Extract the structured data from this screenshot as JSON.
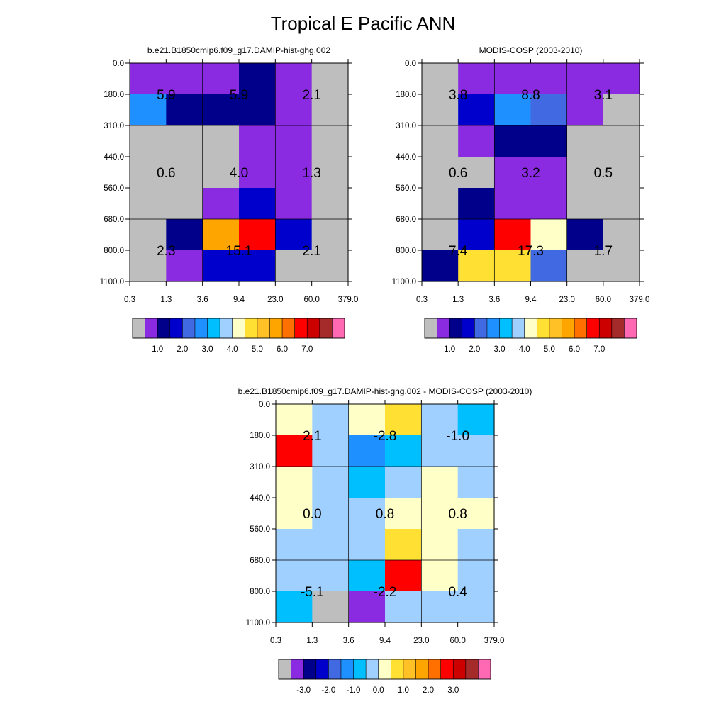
{
  "figure": {
    "title": "Tropical E Pacific ANN"
  },
  "chart_data": [
    {
      "type": "heatmap",
      "title": "b.e21.B1850cmip6.f09_g17.DAMIP-hist-ghg.002",
      "x_tick_labels": [
        "0.3",
        "1.3",
        "3.6",
        "9.4",
        "23.0",
        "60.0",
        "379.0"
      ],
      "y_tick_labels": [
        "0.0",
        "180.0",
        "310.0",
        "440.0",
        "560.0",
        "680.0",
        "800.0",
        "1100.0"
      ],
      "cell_colors": [
        [
          "#8a2be2",
          "#8a2be2",
          "#8a2be2",
          "#00008b",
          "#8a2be2",
          "#bebebe"
        ],
        [
          "#1e90ff",
          "#00008b",
          "#00008b",
          "#00008b",
          "#8a2be2",
          "#bebebe"
        ],
        [
          "#bebebe",
          "#bebebe",
          "#bebebe",
          "#8a2be2",
          "#8a2be2",
          "#bebebe"
        ],
        [
          "#bebebe",
          "#bebebe",
          "#bebebe",
          "#8a2be2",
          "#8a2be2",
          "#bebebe"
        ],
        [
          "#bebebe",
          "#bebebe",
          "#8a2be2",
          "#0000cd",
          "#8a2be2",
          "#bebebe"
        ],
        [
          "#bebebe",
          "#00008b",
          "#ffa500",
          "#ff0000",
          "#0000cd",
          "#bebebe"
        ],
        [
          "#bebebe",
          "#8a2be2",
          "#0000cd",
          "#0000cd",
          "#bebebe",
          "#bebebe"
        ]
      ],
      "box_labels": [
        {
          "row": 0,
          "col": 0,
          "text": "5.9"
        },
        {
          "row": 0,
          "col": 1,
          "text": "5.9"
        },
        {
          "row": 0,
          "col": 2,
          "text": "2.1"
        },
        {
          "row": 1,
          "col": 0,
          "text": "0.6"
        },
        {
          "row": 1,
          "col": 1,
          "text": "4.0"
        },
        {
          "row": 1,
          "col": 2,
          "text": "1.3"
        },
        {
          "row": 2,
          "col": 0,
          "text": "2.3"
        },
        {
          "row": 2,
          "col": 1,
          "text": "15.1"
        },
        {
          "row": 2,
          "col": 2,
          "text": "2.1"
        }
      ],
      "colorbar": {
        "colors": [
          "#bebebe",
          "#8a2be2",
          "#00008b",
          "#0000cd",
          "#4169e1",
          "#1e90ff",
          "#00bfff",
          "#a0d0ff",
          "#ffffc8",
          "#ffe033",
          "#ffc125",
          "#ffa500",
          "#ff7000",
          "#ff0000",
          "#cd0000",
          "#a52a2a",
          "#ff69b4"
        ],
        "labels": [
          "1.0",
          "2.0",
          "3.0",
          "4.0",
          "5.0",
          "6.0",
          "7.0"
        ]
      }
    },
    {
      "type": "heatmap",
      "title": "MODIS-COSP (2003-2010)",
      "x_tick_labels": [
        "0.3",
        "1.3",
        "3.6",
        "9.4",
        "23.0",
        "60.0",
        "379.0"
      ],
      "y_tick_labels": [
        "0.0",
        "180.0",
        "310.0",
        "440.0",
        "560.0",
        "680.0",
        "800.0",
        "1100.0"
      ],
      "cell_colors": [
        [
          "#bebebe",
          "#8a2be2",
          "#8a2be2",
          "#8a2be2",
          "#8a2be2",
          "#8a2be2"
        ],
        [
          "#bebebe",
          "#0000cd",
          "#1e90ff",
          "#4169e1",
          "#8a2be2",
          "#bebebe"
        ],
        [
          "#bebebe",
          "#8a2be2",
          "#00008b",
          "#00008b",
          "#bebebe",
          "#bebebe"
        ],
        [
          "#bebebe",
          "#bebebe",
          "#8a2be2",
          "#8a2be2",
          "#bebebe",
          "#bebebe"
        ],
        [
          "#bebebe",
          "#00008b",
          "#8a2be2",
          "#8a2be2",
          "#bebebe",
          "#bebebe"
        ],
        [
          "#bebebe",
          "#0000cd",
          "#ff0000",
          "#ffffc8",
          "#00008b",
          "#bebebe"
        ],
        [
          "#00008b",
          "#ffe033",
          "#ffe033",
          "#4169e1",
          "#bebebe",
          "#bebebe"
        ]
      ],
      "box_labels": [
        {
          "row": 0,
          "col": 0,
          "text": "3.8"
        },
        {
          "row": 0,
          "col": 1,
          "text": "8.8"
        },
        {
          "row": 0,
          "col": 2,
          "text": "3.1"
        },
        {
          "row": 1,
          "col": 0,
          "text": "0.6"
        },
        {
          "row": 1,
          "col": 1,
          "text": "3.2"
        },
        {
          "row": 1,
          "col": 2,
          "text": "0.5"
        },
        {
          "row": 2,
          "col": 0,
          "text": "7.4"
        },
        {
          "row": 2,
          "col": 1,
          "text": "17.3"
        },
        {
          "row": 2,
          "col": 2,
          "text": "1.7"
        }
      ],
      "colorbar": {
        "colors": [
          "#bebebe",
          "#8a2be2",
          "#00008b",
          "#0000cd",
          "#4169e1",
          "#1e90ff",
          "#00bfff",
          "#a0d0ff",
          "#ffffc8",
          "#ffe033",
          "#ffc125",
          "#ffa500",
          "#ff7000",
          "#ff0000",
          "#cd0000",
          "#a52a2a",
          "#ff69b4"
        ],
        "labels": [
          "1.0",
          "2.0",
          "3.0",
          "4.0",
          "5.0",
          "6.0",
          "7.0"
        ]
      }
    },
    {
      "type": "heatmap",
      "title": "b.e21.B1850cmip6.f09_g17.DAMIP-hist-ghg.002 - MODIS-COSP (2003-2010)",
      "x_tick_labels": [
        "0.3",
        "1.3",
        "3.6",
        "9.4",
        "23.0",
        "60.0",
        "379.0"
      ],
      "y_tick_labels": [
        "0.0",
        "180.0",
        "310.0",
        "440.0",
        "560.0",
        "680.0",
        "800.0",
        "1100.0"
      ],
      "cell_colors": [
        [
          "#ffffc8",
          "#a0d0ff",
          "#ffffc8",
          "#ffe033",
          "#a0d0ff",
          "#00bfff"
        ],
        [
          "#ff0000",
          "#a0d0ff",
          "#1e90ff",
          "#00bfff",
          "#a0d0ff",
          "#a0d0ff"
        ],
        [
          "#ffffc8",
          "#a0d0ff",
          "#00bfff",
          "#a0d0ff",
          "#ffffc8",
          "#a0d0ff"
        ],
        [
          "#ffffc8",
          "#a0d0ff",
          "#a0d0ff",
          "#ffffc8",
          "#ffffc8",
          "#ffffc8"
        ],
        [
          "#a0d0ff",
          "#a0d0ff",
          "#a0d0ff",
          "#ffe033",
          "#ffffc8",
          "#a0d0ff"
        ],
        [
          "#a0d0ff",
          "#a0d0ff",
          "#00bfff",
          "#ff0000",
          "#ffffc8",
          "#a0d0ff"
        ],
        [
          "#00bfff",
          "#bebebe",
          "#8a2be2",
          "#a0d0ff",
          "#a0d0ff",
          "#a0d0ff"
        ]
      ],
      "box_labels": [
        {
          "row": 0,
          "col": 0,
          "text": "2.1"
        },
        {
          "row": 0,
          "col": 1,
          "text": "-2.8"
        },
        {
          "row": 0,
          "col": 2,
          "text": "-1.0"
        },
        {
          "row": 1,
          "col": 0,
          "text": "0.0"
        },
        {
          "row": 1,
          "col": 1,
          "text": "0.8"
        },
        {
          "row": 1,
          "col": 2,
          "text": "0.8"
        },
        {
          "row": 2,
          "col": 0,
          "text": "-5.1"
        },
        {
          "row": 2,
          "col": 1,
          "text": "-2.2"
        },
        {
          "row": 2,
          "col": 2,
          "text": "0.4"
        }
      ],
      "colorbar": {
        "colors": [
          "#bebebe",
          "#8a2be2",
          "#00008b",
          "#0000cd",
          "#4169e1",
          "#1e90ff",
          "#00bfff",
          "#a0d0ff",
          "#ffffc8",
          "#ffe033",
          "#ffc125",
          "#ffa500",
          "#ff7000",
          "#ff0000",
          "#cd0000",
          "#a52a2a",
          "#ff69b4"
        ],
        "labels": [
          "-3.0",
          "-2.0",
          "-1.0",
          "0.0",
          "1.0",
          "2.0",
          "3.0"
        ]
      }
    }
  ]
}
